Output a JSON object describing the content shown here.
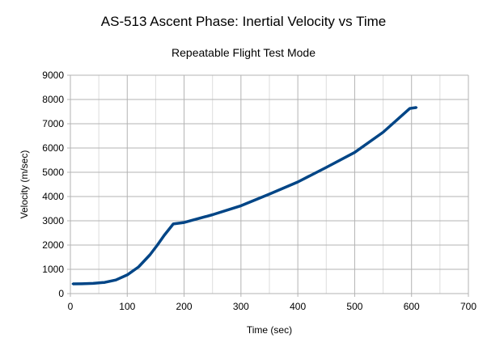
{
  "chart_data": {
    "type": "line",
    "title": "AS-513 Ascent Phase: Inertial Velocity vs Time",
    "subtitle": "Repeatable Flight Test Mode",
    "xlabel": "Time (sec)",
    "ylabel": "Velocity (m/sec)",
    "xlim": [
      0,
      700
    ],
    "ylim": [
      0,
      9000
    ],
    "xticks": [
      0,
      100,
      200,
      300,
      400,
      500,
      600,
      700
    ],
    "yticks": [
      0,
      1000,
      2000,
      3000,
      4000,
      5000,
      6000,
      7000,
      8000,
      9000
    ],
    "x_minor_step": 50,
    "grid": true,
    "legend": "none",
    "line_color": "#004586",
    "series": [
      {
        "name": "Inertial Velocity",
        "x": [
          4,
          20,
          40,
          60,
          80,
          100,
          120,
          140,
          153,
          165,
          181,
          200,
          250,
          300,
          350,
          400,
          450,
          500,
          550,
          597,
          609
        ],
        "y": [
          400,
          405,
          420,
          460,
          560,
          770,
          1100,
          1600,
          2000,
          2400,
          2870,
          2930,
          3250,
          3620,
          4100,
          4600,
          5200,
          5820,
          6650,
          7630,
          7670
        ]
      }
    ]
  }
}
